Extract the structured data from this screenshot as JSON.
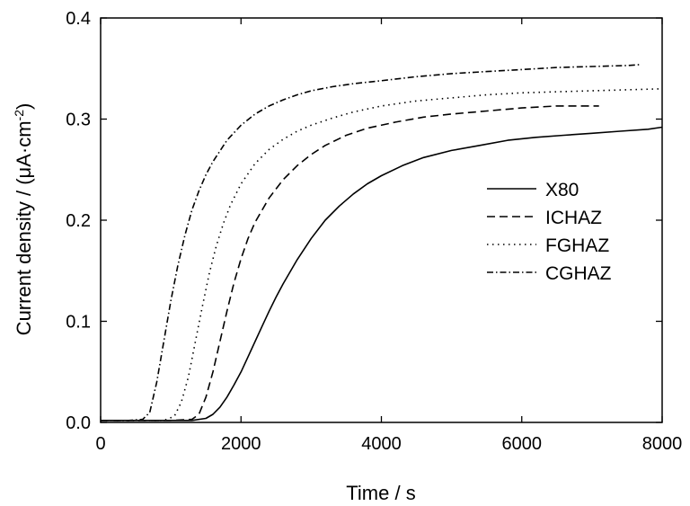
{
  "chart_data": {
    "type": "line",
    "title": "",
    "xlabel": "Time / s",
    "ylabel": "Current density / (μA·cm",
    "ylabel_sup": "-2",
    "ylabel_close": ")",
    "xlim": [
      0,
      8000
    ],
    "ylim": [
      0,
      0.4
    ],
    "xticks": [
      0,
      2000,
      4000,
      6000,
      8000
    ],
    "xtick_labels": [
      "0",
      "2000",
      "4000",
      "6000",
      "8000"
    ],
    "yticks": [
      0,
      0.1,
      0.2,
      0.3,
      0.4
    ],
    "ytick_labels": [
      "0.0",
      "0.1",
      "0.2",
      "0.3",
      "0.4"
    ],
    "grid": false,
    "legend_position": "right-middle",
    "series": [
      {
        "name": "X80",
        "dash": "solid",
        "x": [
          0,
          500,
          1000,
          1300,
          1500,
          1600,
          1700,
          1800,
          1900,
          2000,
          2100,
          2200,
          2300,
          2400,
          2500,
          2600,
          2800,
          3000,
          3200,
          3400,
          3600,
          3800,
          4000,
          4300,
          4600,
          5000,
          5400,
          5800,
          6200,
          6600,
          7000,
          7400,
          7800,
          8000
        ],
        "y": [
          0.002,
          0.002,
          0.002,
          0.002,
          0.004,
          0.008,
          0.015,
          0.025,
          0.037,
          0.05,
          0.065,
          0.08,
          0.095,
          0.11,
          0.124,
          0.137,
          0.161,
          0.182,
          0.2,
          0.214,
          0.226,
          0.236,
          0.244,
          0.254,
          0.262,
          0.269,
          0.274,
          0.279,
          0.282,
          0.284,
          0.286,
          0.288,
          0.29,
          0.292
        ]
      },
      {
        "name": "ICHAZ",
        "dash": "dashed",
        "x": [
          0,
          500,
          1000,
          1300,
          1400,
          1500,
          1600,
          1700,
          1800,
          1900,
          2000,
          2100,
          2200,
          2400,
          2600,
          2800,
          3000,
          3200,
          3500,
          3800,
          4200,
          4600,
          5000,
          5500,
          6000,
          6500,
          7100
        ],
        "y": [
          0.002,
          0.002,
          0.002,
          0.003,
          0.008,
          0.025,
          0.05,
          0.08,
          0.11,
          0.138,
          0.162,
          0.182,
          0.198,
          0.222,
          0.24,
          0.254,
          0.265,
          0.274,
          0.284,
          0.291,
          0.297,
          0.302,
          0.305,
          0.308,
          0.311,
          0.313,
          0.313
        ]
      },
      {
        "name": "FGHAZ",
        "dash": "dotted",
        "x": [
          0,
          500,
          900,
          1050,
          1150,
          1250,
          1350,
          1450,
          1550,
          1650,
          1750,
          1850,
          2000,
          2200,
          2400,
          2600,
          2800,
          3000,
          3300,
          3600,
          4000,
          4500,
          5000,
          5500,
          6000,
          6500,
          7000,
          7500,
          8000
        ],
        "y": [
          0.002,
          0.002,
          0.002,
          0.006,
          0.02,
          0.045,
          0.08,
          0.115,
          0.148,
          0.175,
          0.197,
          0.215,
          0.236,
          0.256,
          0.27,
          0.28,
          0.288,
          0.294,
          0.301,
          0.307,
          0.313,
          0.318,
          0.321,
          0.324,
          0.326,
          0.327,
          0.328,
          0.329,
          0.33
        ]
      },
      {
        "name": "CGHAZ",
        "dash": "dashdot",
        "x": [
          0,
          400,
          600,
          700,
          800,
          900,
          1000,
          1100,
          1200,
          1300,
          1400,
          1500,
          1600,
          1800,
          2000,
          2200,
          2400,
          2600,
          2800,
          3000,
          3300,
          3600,
          4000,
          4500,
          5000,
          5500,
          6000,
          6500,
          7000,
          7500,
          7700
        ],
        "y": [
          0.002,
          0.002,
          0.003,
          0.01,
          0.04,
          0.08,
          0.12,
          0.155,
          0.185,
          0.21,
          0.229,
          0.245,
          0.258,
          0.279,
          0.294,
          0.305,
          0.313,
          0.319,
          0.324,
          0.328,
          0.332,
          0.335,
          0.338,
          0.342,
          0.345,
          0.347,
          0.349,
          0.351,
          0.352,
          0.353,
          0.354
        ]
      }
    ]
  }
}
